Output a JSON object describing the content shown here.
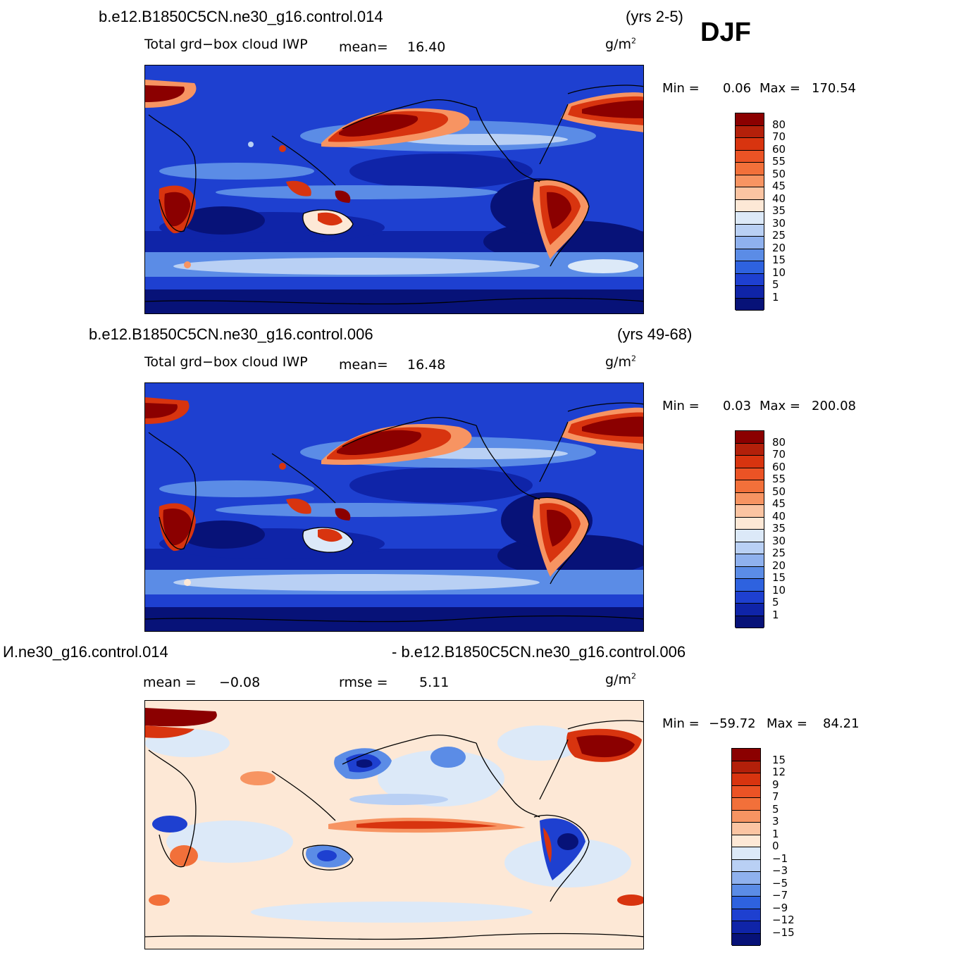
{
  "panels": [
    {
      "case": "b.e12.B1850C5CN.ne30_g16.control.014",
      "years": "(yrs 2-5)",
      "variable": "Total grd−box cloud IWP",
      "mean_label": "mean=",
      "mean_value": "16.40",
      "units": "g/m",
      "units_exp": "2",
      "min_label": "Min =",
      "min_value": "0.06",
      "max_label": "Max =",
      "max_value": "170.54",
      "levels": [
        "80",
        "70",
        "60",
        "55",
        "50",
        "45",
        "40",
        "35",
        "30",
        "25",
        "20",
        "15",
        "10",
        "5",
        "1"
      ],
      "colors": [
        "#8b0000",
        "#b3200a",
        "#d8340f",
        "#eb5325",
        "#f2703a",
        "#f79462",
        "#fbc4a2",
        "#fde8d6",
        "#dce9f8",
        "#b9d0f4",
        "#8fb1ee",
        "#5b8ce6",
        "#2e62df",
        "#1e40d0",
        "#0f24a8",
        "#071278"
      ]
    },
    {
      "case": "b.e12.B1850C5CN.ne30_g16.control.006",
      "years": "(yrs 49-68)",
      "variable": "Total grd−box cloud IWP",
      "mean_label": "mean=",
      "mean_value": "16.48",
      "units": "g/m",
      "units_exp": "2",
      "min_label": "Min =",
      "min_value": "0.03",
      "max_label": "Max =",
      "max_value": "200.08",
      "levels": [
        "80",
        "70",
        "60",
        "55",
        "50",
        "45",
        "40",
        "35",
        "30",
        "25",
        "20",
        "15",
        "10",
        "5",
        "1"
      ],
      "colors": [
        "#8b0000",
        "#b3200a",
        "#d8340f",
        "#eb5325",
        "#f2703a",
        "#f79462",
        "#fbc4a2",
        "#fde8d6",
        "#dce9f8",
        "#b9d0f4",
        "#8fb1ee",
        "#5b8ce6",
        "#2e62df",
        "#1e40d0",
        "#0f24a8",
        "#071278"
      ]
    },
    {
      "case_left": "И.ne30_g16.control.014",
      "case_right": "- b.e12.B1850C5CN.ne30_g16.control.006",
      "mean_label": "mean =",
      "mean_value": "−0.08",
      "rmse_label": "rmse =",
      "rmse_value": "5.11",
      "units": "g/m",
      "units_exp": "2",
      "min_label": "Min =",
      "min_value": "−59.72",
      "max_label": "Max =",
      "max_value": "84.21",
      "levels": [
        "15",
        "12",
        "9",
        "7",
        "5",
        "3",
        "1",
        "0",
        "−1",
        "−3",
        "−5",
        "−7",
        "−9",
        "−12",
        "−15"
      ],
      "colors": [
        "#8b0000",
        "#b3200a",
        "#d8340f",
        "#eb5325",
        "#f2703a",
        "#f79462",
        "#fbc4a2",
        "#fde8d6",
        "#dce9f8",
        "#b9d0f4",
        "#8fb1ee",
        "#5b8ce6",
        "#2e62df",
        "#1e40d0",
        "#0f24a8",
        "#071278"
      ]
    }
  ],
  "season": "DJF"
}
